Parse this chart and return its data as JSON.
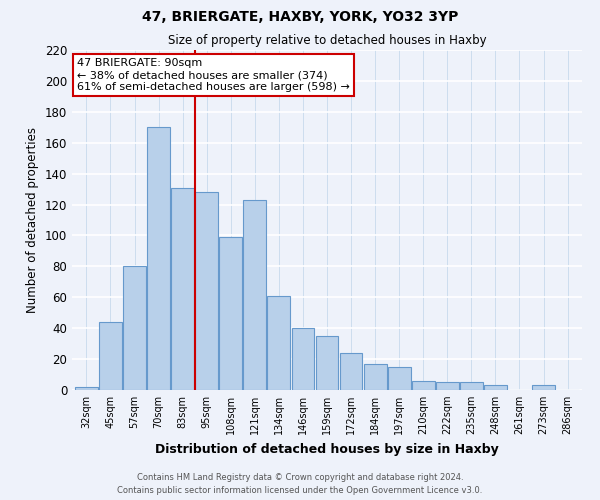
{
  "title": "47, BRIERGATE, HAXBY, YORK, YO32 3YP",
  "subtitle": "Size of property relative to detached houses in Haxby",
  "xlabel": "Distribution of detached houses by size in Haxby",
  "ylabel": "Number of detached properties",
  "bar_labels": [
    "32sqm",
    "45sqm",
    "57sqm",
    "70sqm",
    "83sqm",
    "95sqm",
    "108sqm",
    "121sqm",
    "134sqm",
    "146sqm",
    "159sqm",
    "172sqm",
    "184sqm",
    "197sqm",
    "210sqm",
    "222sqm",
    "235sqm",
    "248sqm",
    "261sqm",
    "273sqm",
    "286sqm"
  ],
  "bar_values": [
    2,
    44,
    80,
    170,
    131,
    128,
    99,
    123,
    61,
    40,
    35,
    24,
    17,
    15,
    6,
    5,
    5,
    3,
    0,
    3,
    0
  ],
  "bar_color": "#b8d0ea",
  "bar_edge_color": "#6699cc",
  "vline_x": 4.5,
  "vline_color": "#cc0000",
  "annotation_title": "47 BRIERGATE: 90sqm",
  "annotation_line1": "← 38% of detached houses are smaller (374)",
  "annotation_line2": "61% of semi-detached houses are larger (598) →",
  "annotation_box_color": "#ffffff",
  "annotation_box_edge": "#cc0000",
  "ylim": [
    0,
    220
  ],
  "yticks": [
    0,
    20,
    40,
    60,
    80,
    100,
    120,
    140,
    160,
    180,
    200,
    220
  ],
  "footer_line1": "Contains HM Land Registry data © Crown copyright and database right 2024.",
  "footer_line2": "Contains public sector information licensed under the Open Government Licence v3.0.",
  "bg_color": "#eef2fa"
}
